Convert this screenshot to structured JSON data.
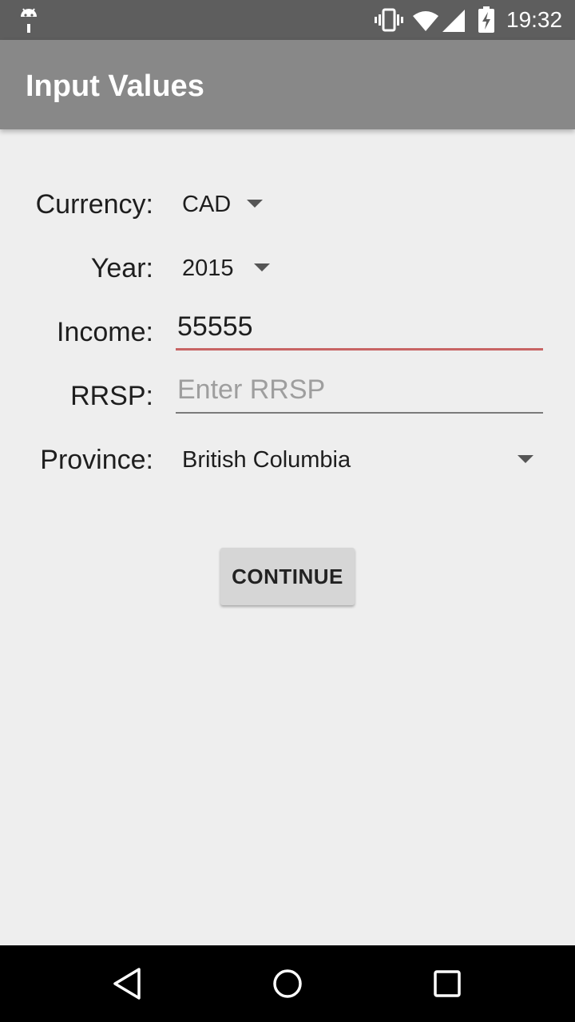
{
  "status_bar": {
    "time": "19:32",
    "icons": [
      "android-icon",
      "vibrate-icon",
      "wifi-icon",
      "signal-icon",
      "battery-icon"
    ]
  },
  "app_bar": {
    "title": "Input Values"
  },
  "form": {
    "currency": {
      "label": "Currency:",
      "value": "CAD"
    },
    "year": {
      "label": "Year:",
      "value": "2015"
    },
    "income": {
      "label": "Income:",
      "value": "55555"
    },
    "rrsp": {
      "label": "RRSP:",
      "value": "",
      "placeholder": "Enter RRSP"
    },
    "province": {
      "label": "Province:",
      "value": "British Columbia"
    }
  },
  "actions": {
    "continue_label": "CONTINUE"
  },
  "nav_bar": {
    "buttons": [
      "back-icon",
      "home-icon",
      "recents-icon"
    ]
  },
  "colors": {
    "status_bar": "#5e5e5e",
    "app_bar": "#888888",
    "background": "#eeeeee",
    "focused_underline": "#c86464",
    "button": "#d6d6d6"
  }
}
